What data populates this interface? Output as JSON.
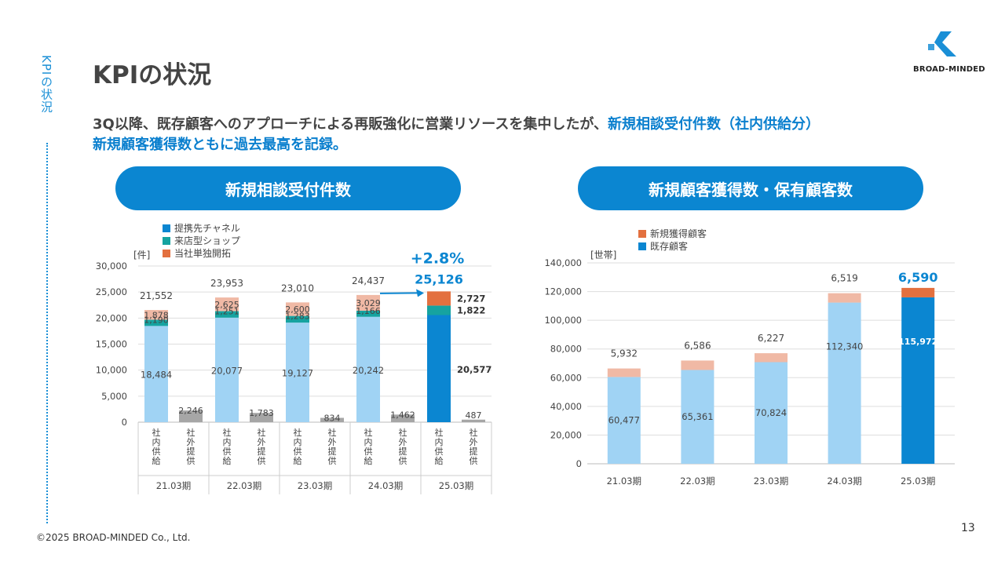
{
  "side_label": "KPIの状況",
  "title": "KPIの状況",
  "logo": {
    "text": "BROAD-MINDED",
    "color": "#1a8fd6"
  },
  "lead": {
    "part1": "3Q以降、既存顧客へのアプローチによる再販強化に営業リソースを集中したが、",
    "part2": "新規相談受付件数（社内供給分）",
    "part3": "新規顧客獲得数ともに過去最高を記録。"
  },
  "colors": {
    "accent": "#0b86d1",
    "light_blue": "#a0d3f4",
    "teal": "#16a3a0",
    "orange": "#e3703f",
    "pale_orange": "#f0b9a5",
    "gray": "#a6a6a6"
  },
  "footer": {
    "copyright": "©2025 BROAD-MINDED Co., Ltd.",
    "page": "13"
  },
  "chart_data": [
    {
      "panel_title": "新規相談受付件数",
      "type": "bar",
      "stacked": true,
      "unit": "[件]",
      "ylim": [
        0,
        30000
      ],
      "yticks": [
        "0",
        "5,000",
        "10,000",
        "15,000",
        "20,000",
        "25,000",
        "30,000"
      ],
      "legend": [
        "提携先チャネル",
        "来店型ショップ",
        "当社単独開拓"
      ],
      "periods": [
        "21.03期",
        "22.03期",
        "23.03期",
        "24.03期",
        "25.03期"
      ],
      "sub_categories": [
        "社内供給",
        "社外提供"
      ],
      "internal": [
        {
          "period": "21.03期",
          "total": 21552,
          "total_label": "21,552",
          "partner": 18484,
          "partner_label": "18,484",
          "shop": 1190,
          "shop_label": "1,190",
          "own": 1878,
          "own_label": "1,878"
        },
        {
          "period": "22.03期",
          "total": 23953,
          "total_label": "23,953",
          "partner": 20077,
          "partner_label": "20,077",
          "shop": 1251,
          "shop_label": "1,251",
          "own": 2625,
          "own_label": "2,625"
        },
        {
          "period": "23.03期",
          "total": 23010,
          "total_label": "23,010",
          "partner": 19127,
          "partner_label": "19,127",
          "shop": 1283,
          "shop_label": "1,283",
          "own": 2600,
          "own_label": "2,600"
        },
        {
          "period": "24.03期",
          "total": 24437,
          "total_label": "24,437",
          "partner": 20242,
          "partner_label": "20,242",
          "shop": 1166,
          "shop_label": "1,166",
          "own": 3029,
          "own_label": "3,029"
        },
        {
          "period": "25.03期",
          "total": 25126,
          "total_label": "25,126",
          "partner": 20577,
          "partner_label": "20,577",
          "shop": 1822,
          "shop_label": "1,822",
          "own": 2727,
          "own_label": "2,727"
        }
      ],
      "external": [
        {
          "period": "21.03期",
          "value": 2246,
          "label": "2,246"
        },
        {
          "period": "22.03期",
          "value": 1783,
          "label": "1,783"
        },
        {
          "period": "23.03期",
          "value": 834,
          "label": "834"
        },
        {
          "period": "24.03期",
          "value": 1462,
          "label": "1,462"
        },
        {
          "period": "25.03期",
          "value": 487,
          "label": "487"
        }
      ],
      "growth_label": "+2.8%"
    },
    {
      "panel_title": "新規顧客獲得数・保有顧客数",
      "type": "bar",
      "stacked": true,
      "unit": "[世帯]",
      "ylim": [
        0,
        140000
      ],
      "yticks": [
        "0",
        "20,000",
        "40,000",
        "60,000",
        "80,000",
        "100,000",
        "120,000",
        "140,000"
      ],
      "legend": [
        "新規獲得顧客",
        "既存顧客"
      ],
      "categories": [
        "21.03期",
        "22.03期",
        "23.03期",
        "24.03期",
        "25.03期"
      ],
      "series": [
        {
          "name": "既存顧客",
          "values": [
            60477,
            65361,
            70824,
            112340,
            115972
          ],
          "labels": [
            "60,477",
            "65,361",
            "70,824",
            "112,340",
            "115,972"
          ]
        },
        {
          "name": "新規獲得顧客",
          "values": [
            5932,
            6586,
            6227,
            6519,
            6590
          ],
          "labels": [
            "5,932",
            "6,586",
            "6,227",
            "6,519",
            "6,590"
          ]
        }
      ]
    }
  ]
}
